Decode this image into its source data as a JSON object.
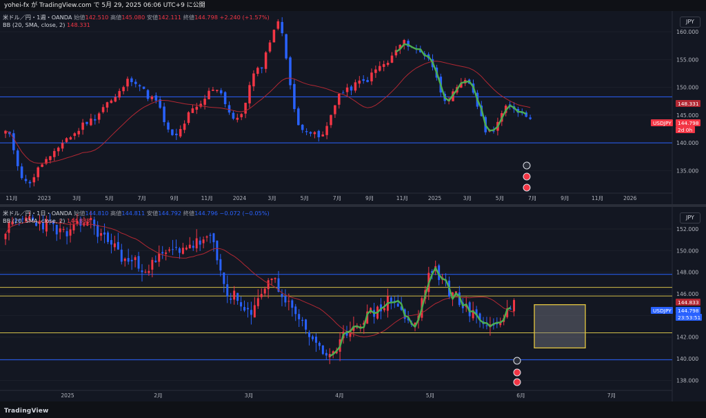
{
  "header": {
    "publisher": "yohei-fx が TradingView.com で 5月 29, 2025 06:06 UTC+9 に公開"
  },
  "footer": {
    "brand": "TradingView"
  },
  "colors": {
    "up": "#f23645",
    "down": "#2962ff",
    "bb_mid": "#b22833",
    "wave": "#4caf50",
    "hline_blue": "#2962ff",
    "hline_yellow": "#d4c04a"
  },
  "chart_data": [
    {
      "type": "candlestick",
      "symbol_line": "米ドル／円・1週・OANDA",
      "ohlc": {
        "o_label": "始値",
        "o": "142.510",
        "h_label": "高値",
        "h": "145.080",
        "l_label": "安値",
        "l": "142.111",
        "c_label": "終値",
        "c": "144.798",
        "change": "+2.240 (+1.57%)"
      },
      "indicator": {
        "label": "BB (20, SMA, close, 2)",
        "value": "148.331"
      },
      "currency": "JPY",
      "y_ticks": [
        "160.000",
        "155.000",
        "150.000",
        "145.000",
        "140.000",
        "135.000"
      ],
      "ylim": [
        131.2,
        162.5
      ],
      "x_ticks": [
        "11月",
        "2023",
        "3月",
        "5月",
        "7月",
        "9月",
        "11月",
        "2024",
        "3月",
        "5月",
        "7月",
        "9月",
        "11月",
        "2025",
        "3月",
        "5月",
        "7月",
        "9月",
        "11月",
        "2026"
      ],
      "hlines": [
        148.3,
        140.0
      ],
      "badges": [
        {
          "label": "148.331",
          "kind": "bb"
        },
        {
          "label": "USDJPY",
          "kind": "symbol"
        },
        {
          "label": "144.798",
          "kind": "price"
        },
        {
          "label": "2d 0h",
          "kind": "countdown"
        }
      ],
      "anchors": [
        142.0,
        132.8,
        137.0,
        141.0,
        144.0,
        147.5,
        151.5,
        148.0,
        141.0,
        146.0,
        150.0,
        144.0,
        153.0,
        161.5,
        143.0,
        141.0,
        149.0,
        151.0,
        154.0,
        158.0,
        156.0,
        148.0,
        151.0,
        142.0,
        146.5,
        144.8
      ]
    },
    {
      "type": "candlestick",
      "symbol_line": "米ドル／円・1日・OANDA",
      "ohlc": {
        "o_label": "始値",
        "o": "144.810",
        "h_label": "高値",
        "h": "144.811",
        "l_label": "安値",
        "l": "144.792",
        "c_label": "終値",
        "c": "144.796",
        "change": "−0.072 (−0.05%)"
      },
      "indicator": {
        "label": "BB (20, SMA, close, 2)",
        "value": "144.833"
      },
      "currency": "JPY",
      "y_ticks": [
        "152.000",
        "150.000",
        "148.000",
        "146.000",
        "144.000",
        "142.000",
        "140.000",
        "138.000"
      ],
      "ylim": [
        137.2,
        153.4
      ],
      "x_ticks": [
        "2025",
        "2月",
        "3月",
        "4月",
        "5月",
        "6月",
        "7月"
      ],
      "hlines_blue": [
        147.8,
        139.9
      ],
      "hlines_yellow": [
        146.6,
        145.8,
        142.4
      ],
      "badges": [
        {
          "label": "144.833",
          "kind": "bb"
        },
        {
          "label": "USDJPY",
          "kind": "symbol"
        },
        {
          "label": "144.798",
          "kind": "price"
        },
        {
          "label": "23:53:51",
          "kind": "countdown"
        }
      ],
      "anchors": [
        152.0,
        153.0,
        152.5,
        151.5,
        152.8,
        151.0,
        149.0,
        148.5,
        149.8,
        150.5,
        151.0,
        146.0,
        144.0,
        147.5,
        145.0,
        142.0,
        140.0,
        143.0,
        144.2,
        145.5,
        143.0,
        148.2,
        146.0,
        144.0,
        143.0,
        145.0
      ]
    }
  ]
}
